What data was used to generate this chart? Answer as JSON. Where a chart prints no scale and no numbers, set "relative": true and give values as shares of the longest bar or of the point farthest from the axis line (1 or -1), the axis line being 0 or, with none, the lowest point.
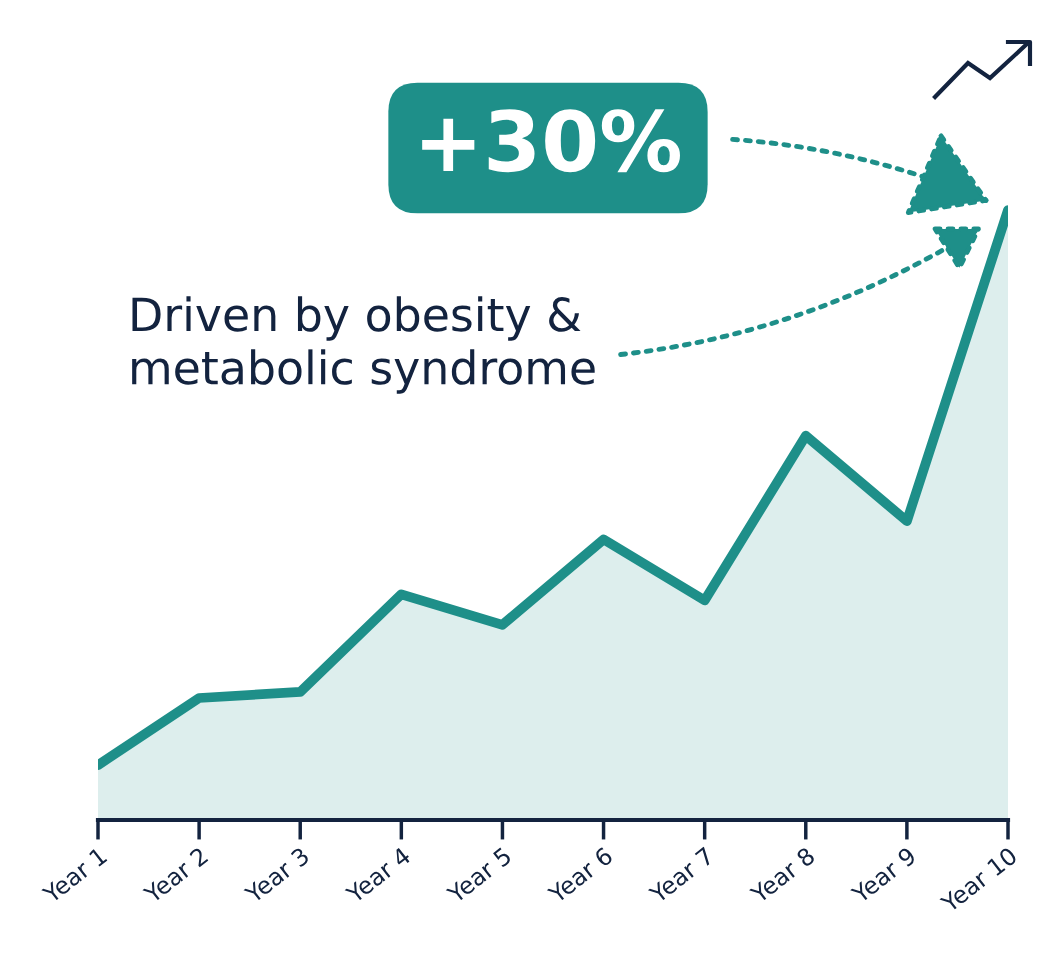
{
  "chart_data": {
    "type": "area",
    "relative": true,
    "categories": [
      "Year 1",
      "Year 2",
      "Year 3",
      "Year 4",
      "Year 5",
      "Year 6",
      "Year 7",
      "Year 8",
      "Year 9",
      "Year 10"
    ],
    "series": [
      {
        "color": "#1e8f89",
        "values": [
          0.09,
          0.2,
          0.21,
          0.37,
          0.32,
          0.46,
          0.36,
          0.63,
          0.49,
          1
        ]
      }
    ],
    "annotations": [
      "+30%",
      "Driven by obesity &\nmetabolic syndrome"
    ],
    "grid": false,
    "legend": false,
    "marker": "none",
    "line_style": "solid"
  }
}
